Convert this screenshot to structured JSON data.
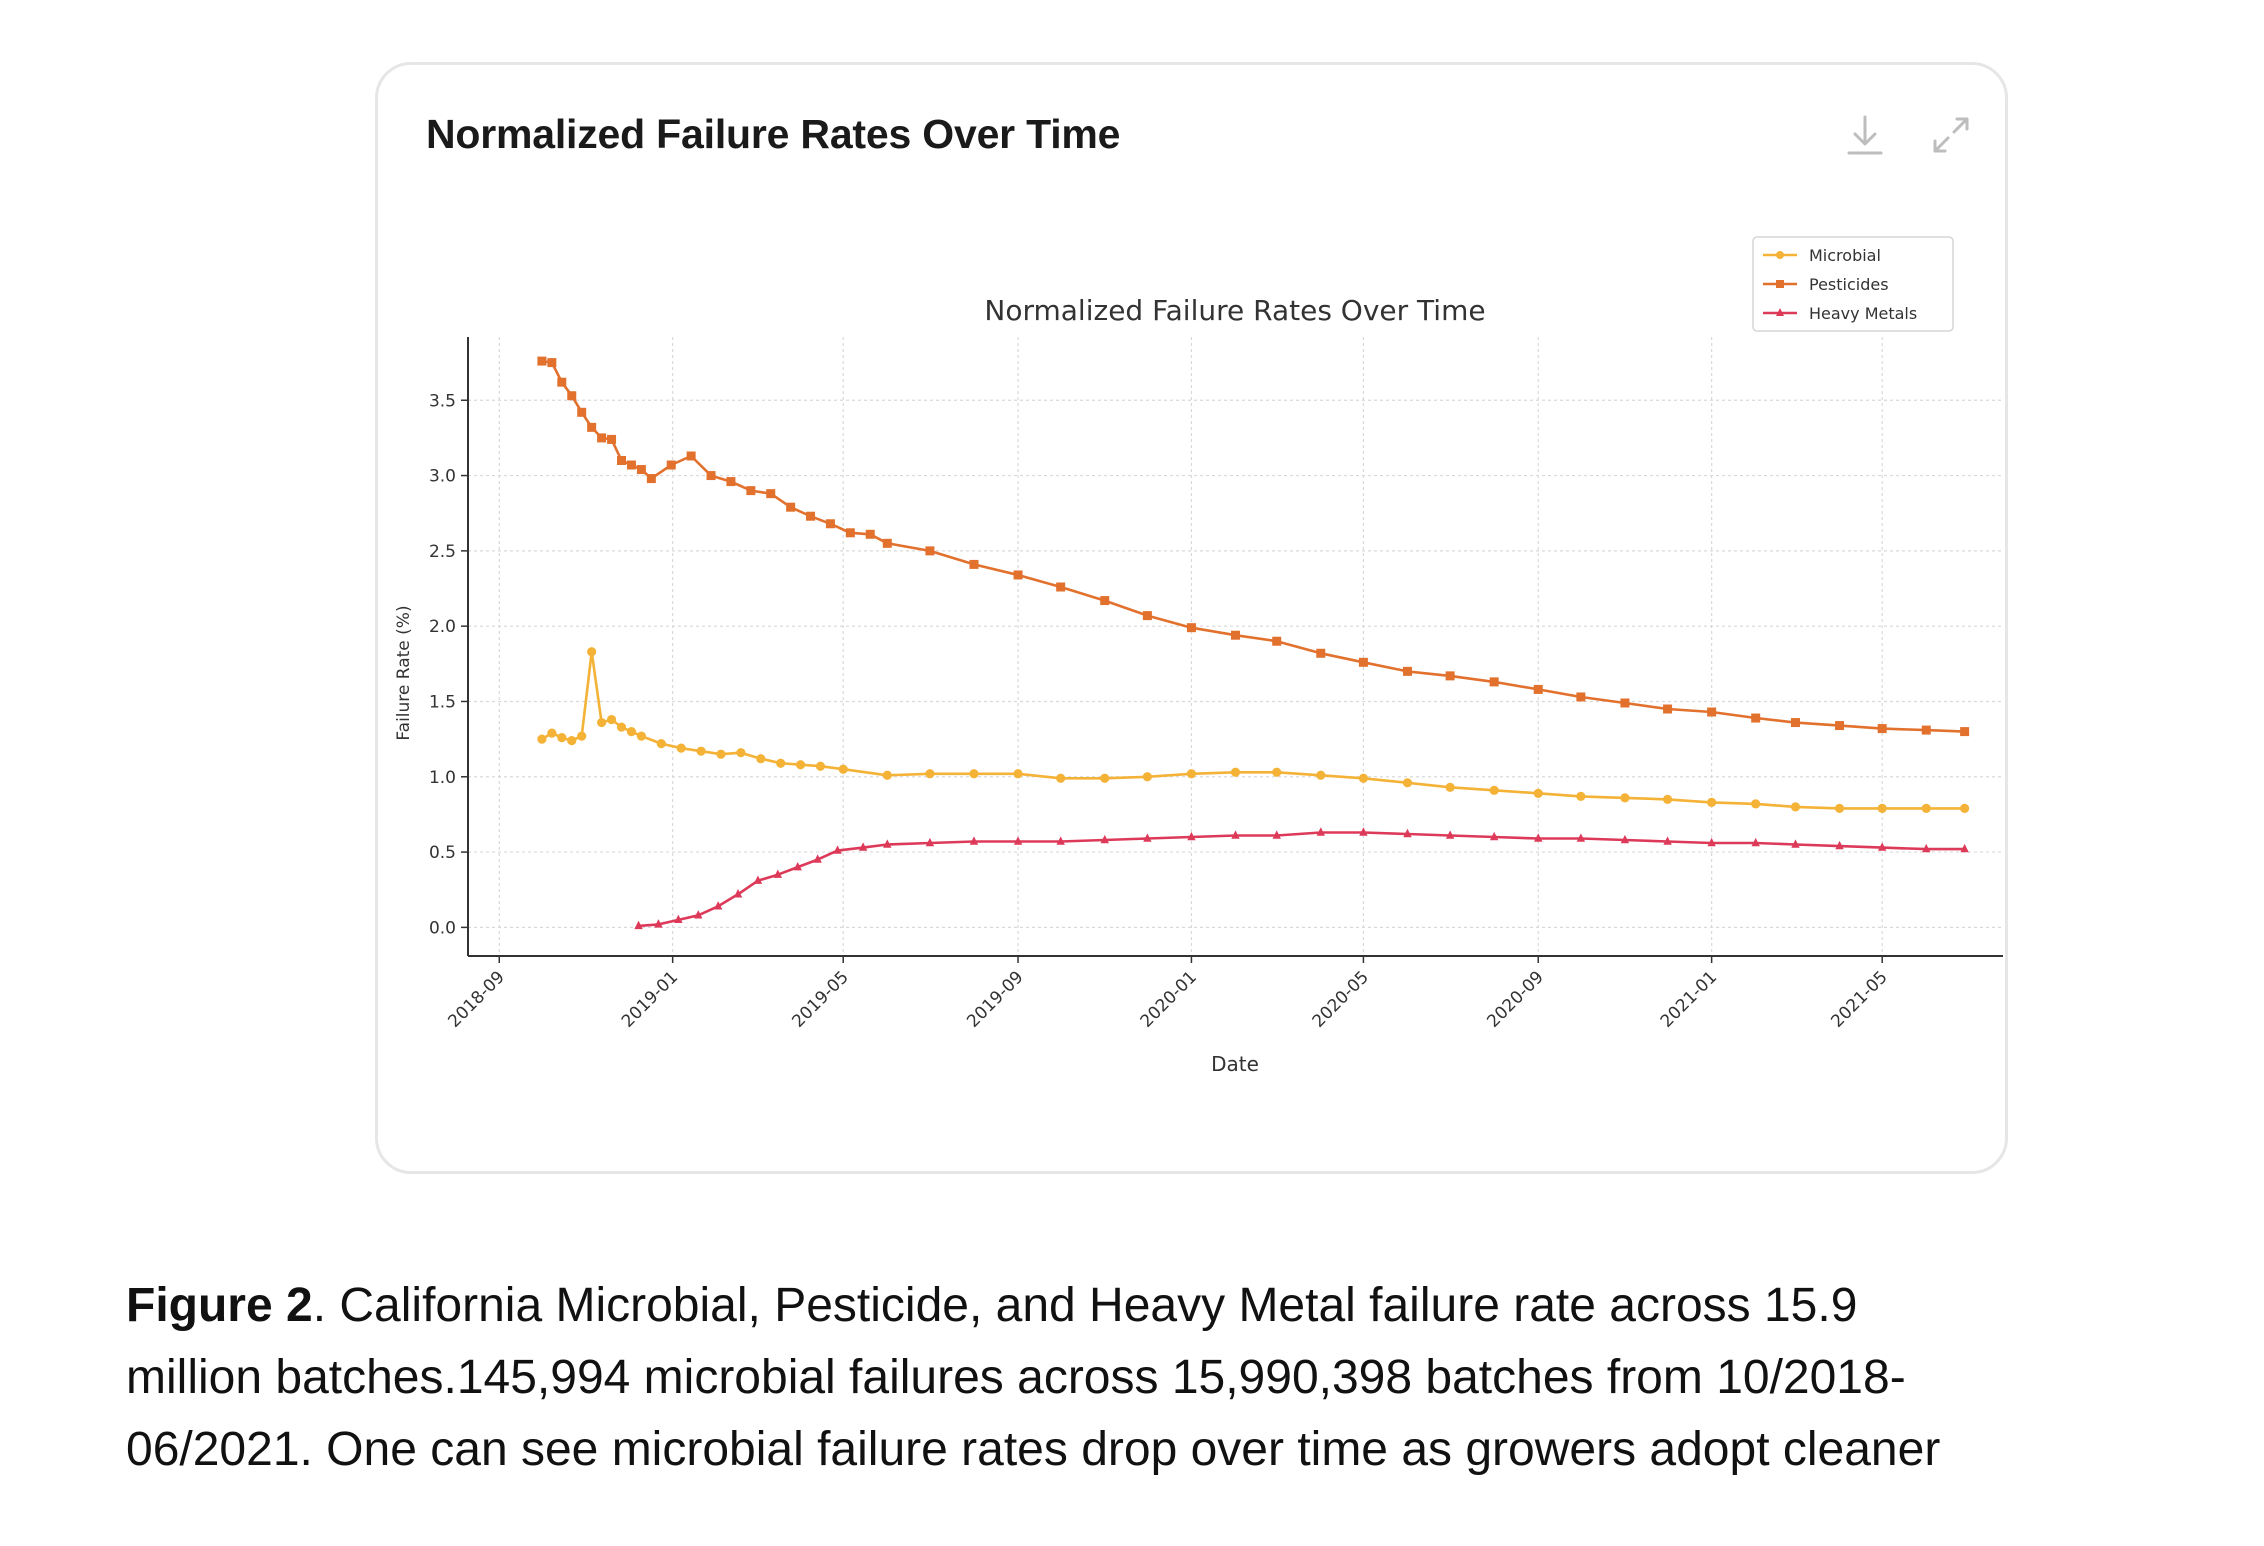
{
  "card": {
    "title": "Normalized Failure Rates Over Time",
    "download_icon": "download-icon",
    "expand_icon": "expand-icon"
  },
  "caption": {
    "label": "Figure 2",
    "line1": ". California Microbial, Pesticide, and Heavy Metal failure rate across 15.9",
    "line2": "million batches.145,994 microbial failures across 15,990,398 batches from 10/2018-",
    "line3": "06/2021. One can see microbial failure rates drop over time as growers adopt cleaner"
  },
  "colors": {
    "microbial": "#f4b237",
    "pesticides": "#e2712e",
    "heavy_metals": "#dd3a5a",
    "axis": "#333333",
    "grid": "#d9d9d9"
  },
  "chart_data": {
    "type": "line",
    "title": "Normalized Failure Rates Over Time",
    "xlabel": "Date",
    "ylabel": "Failure Rate (%)",
    "xlim": [
      "2018-08-10",
      "2021-07-25"
    ],
    "ylim": [
      -0.19,
      3.92
    ],
    "x_ticks": [
      "2018-09",
      "2019-01",
      "2019-05",
      "2019-09",
      "2020-01",
      "2020-05",
      "2020-09",
      "2021-01",
      "2021-05"
    ],
    "y_ticks": [
      "0.0",
      "0.5",
      "1.0",
      "1.5",
      "2.0",
      "2.5",
      "3.0",
      "3.5"
    ],
    "grid": true,
    "legend_position": "top-right",
    "series": [
      {
        "name": "Microbial",
        "marker": "circle",
        "points": [
          [
            "2018-10-01",
            1.25
          ],
          [
            "2018-10-08",
            1.29
          ],
          [
            "2018-10-15",
            1.26
          ],
          [
            "2018-10-22",
            1.24
          ],
          [
            "2018-10-29",
            1.27
          ],
          [
            "2018-11-05",
            1.83
          ],
          [
            "2018-11-12",
            1.36
          ],
          [
            "2018-11-19",
            1.38
          ],
          [
            "2018-11-26",
            1.33
          ],
          [
            "2018-12-03",
            1.3
          ],
          [
            "2018-12-10",
            1.27
          ],
          [
            "2018-12-24",
            1.22
          ],
          [
            "2019-01-07",
            1.19
          ],
          [
            "2019-01-21",
            1.17
          ],
          [
            "2019-02-04",
            1.15
          ],
          [
            "2019-02-18",
            1.16
          ],
          [
            "2019-03-04",
            1.12
          ],
          [
            "2019-03-18",
            1.09
          ],
          [
            "2019-04-01",
            1.08
          ],
          [
            "2019-04-15",
            1.07
          ],
          [
            "2019-05-01",
            1.05
          ],
          [
            "2019-06-01",
            1.01
          ],
          [
            "2019-07-01",
            1.02
          ],
          [
            "2019-08-01",
            1.02
          ],
          [
            "2019-09-01",
            1.02
          ],
          [
            "2019-10-01",
            0.99
          ],
          [
            "2019-11-01",
            0.99
          ],
          [
            "2019-12-01",
            1.0
          ],
          [
            "2020-01-01",
            1.02
          ],
          [
            "2020-02-01",
            1.03
          ],
          [
            "2020-03-01",
            1.03
          ],
          [
            "2020-04-01",
            1.01
          ],
          [
            "2020-05-01",
            0.99
          ],
          [
            "2020-06-01",
            0.96
          ],
          [
            "2020-07-01",
            0.93
          ],
          [
            "2020-08-01",
            0.91
          ],
          [
            "2020-09-01",
            0.89
          ],
          [
            "2020-10-01",
            0.87
          ],
          [
            "2020-11-01",
            0.86
          ],
          [
            "2020-12-01",
            0.85
          ],
          [
            "2021-01-01",
            0.83
          ],
          [
            "2021-02-01",
            0.82
          ],
          [
            "2021-03-01",
            0.8
          ],
          [
            "2021-04-01",
            0.79
          ],
          [
            "2021-05-01",
            0.79
          ],
          [
            "2021-06-01",
            0.79
          ],
          [
            "2021-06-28",
            0.79
          ]
        ]
      },
      {
        "name": "Pesticides",
        "marker": "square",
        "points": [
          [
            "2018-10-01",
            3.76
          ],
          [
            "2018-10-08",
            3.75
          ],
          [
            "2018-10-15",
            3.62
          ],
          [
            "2018-10-22",
            3.53
          ],
          [
            "2018-10-29",
            3.42
          ],
          [
            "2018-11-05",
            3.32
          ],
          [
            "2018-11-12",
            3.25
          ],
          [
            "2018-11-19",
            3.24
          ],
          [
            "2018-11-26",
            3.1
          ],
          [
            "2018-12-03",
            3.07
          ],
          [
            "2018-12-10",
            3.04
          ],
          [
            "2018-12-17",
            2.98
          ],
          [
            "2018-12-31",
            3.07
          ],
          [
            "2019-01-14",
            3.13
          ],
          [
            "2019-01-28",
            3.0
          ],
          [
            "2019-02-11",
            2.96
          ],
          [
            "2019-02-25",
            2.9
          ],
          [
            "2019-03-11",
            2.88
          ],
          [
            "2019-03-25",
            2.79
          ],
          [
            "2019-04-08",
            2.73
          ],
          [
            "2019-04-22",
            2.68
          ],
          [
            "2019-05-06",
            2.62
          ],
          [
            "2019-05-20",
            2.61
          ],
          [
            "2019-06-01",
            2.55
          ],
          [
            "2019-07-01",
            2.5
          ],
          [
            "2019-08-01",
            2.41
          ],
          [
            "2019-09-01",
            2.34
          ],
          [
            "2019-10-01",
            2.26
          ],
          [
            "2019-11-01",
            2.17
          ],
          [
            "2019-12-01",
            2.07
          ],
          [
            "2020-01-01",
            1.99
          ],
          [
            "2020-02-01",
            1.94
          ],
          [
            "2020-03-01",
            1.9
          ],
          [
            "2020-04-01",
            1.82
          ],
          [
            "2020-05-01",
            1.76
          ],
          [
            "2020-06-01",
            1.7
          ],
          [
            "2020-07-01",
            1.67
          ],
          [
            "2020-08-01",
            1.63
          ],
          [
            "2020-09-01",
            1.58
          ],
          [
            "2020-10-01",
            1.53
          ],
          [
            "2020-11-01",
            1.49
          ],
          [
            "2020-12-01",
            1.45
          ],
          [
            "2021-01-01",
            1.43
          ],
          [
            "2021-02-01",
            1.39
          ],
          [
            "2021-03-01",
            1.36
          ],
          [
            "2021-04-01",
            1.34
          ],
          [
            "2021-05-01",
            1.32
          ],
          [
            "2021-06-01",
            1.31
          ],
          [
            "2021-06-28",
            1.3
          ]
        ]
      },
      {
        "name": "Heavy Metals",
        "marker": "triangle",
        "points": [
          [
            "2018-12-08",
            0.01
          ],
          [
            "2018-12-22",
            0.02
          ],
          [
            "2019-01-05",
            0.05
          ],
          [
            "2019-01-19",
            0.08
          ],
          [
            "2019-02-02",
            0.14
          ],
          [
            "2019-02-16",
            0.22
          ],
          [
            "2019-03-02",
            0.31
          ],
          [
            "2019-03-16",
            0.35
          ],
          [
            "2019-03-30",
            0.4
          ],
          [
            "2019-04-13",
            0.45
          ],
          [
            "2019-04-27",
            0.51
          ],
          [
            "2019-05-15",
            0.53
          ],
          [
            "2019-06-01",
            0.55
          ],
          [
            "2019-07-01",
            0.56
          ],
          [
            "2019-08-01",
            0.57
          ],
          [
            "2019-09-01",
            0.57
          ],
          [
            "2019-10-01",
            0.57
          ],
          [
            "2019-11-01",
            0.58
          ],
          [
            "2019-12-01",
            0.59
          ],
          [
            "2020-01-01",
            0.6
          ],
          [
            "2020-02-01",
            0.61
          ],
          [
            "2020-03-01",
            0.61
          ],
          [
            "2020-04-01",
            0.63
          ],
          [
            "2020-05-01",
            0.63
          ],
          [
            "2020-06-01",
            0.62
          ],
          [
            "2020-07-01",
            0.61
          ],
          [
            "2020-08-01",
            0.6
          ],
          [
            "2020-09-01",
            0.59
          ],
          [
            "2020-10-01",
            0.59
          ],
          [
            "2020-11-01",
            0.58
          ],
          [
            "2020-12-01",
            0.57
          ],
          [
            "2021-01-01",
            0.56
          ],
          [
            "2021-02-01",
            0.56
          ],
          [
            "2021-03-01",
            0.55
          ],
          [
            "2021-04-01",
            0.54
          ],
          [
            "2021-05-01",
            0.53
          ],
          [
            "2021-06-01",
            0.52
          ],
          [
            "2021-06-28",
            0.52
          ]
        ]
      }
    ]
  }
}
